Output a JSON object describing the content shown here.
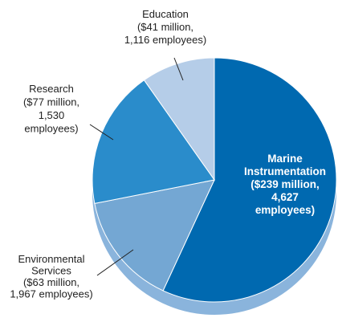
{
  "chart_data": {
    "type": "pie",
    "style": "3d",
    "slices": [
      {
        "lines": [
          "Marine",
          "Instrumentation",
          "($239 million,",
          "4,627",
          "employees)"
        ],
        "value": 239,
        "employees": 4627,
        "color": "#0069b0",
        "label_inside": true
      },
      {
        "lines": [
          "Environmental",
          "Services",
          "($63 million,",
          "1,967 employees)"
        ],
        "value": 63,
        "employees": 1967,
        "color": "#74a7d3",
        "label_inside": false
      },
      {
        "lines": [
          "Research",
          "($77 million,",
          "1,530",
          "employees)"
        ],
        "value": 77,
        "employees": 1530,
        "color": "#2a8ccb",
        "label_inside": false
      },
      {
        "lines": [
          "Education",
          "($41 million,",
          "1,116 employees)"
        ],
        "value": 41,
        "employees": 1116,
        "color": "#b5cde8",
        "label_inside": false
      }
    ],
    "side_color": "#8ab4dc"
  }
}
